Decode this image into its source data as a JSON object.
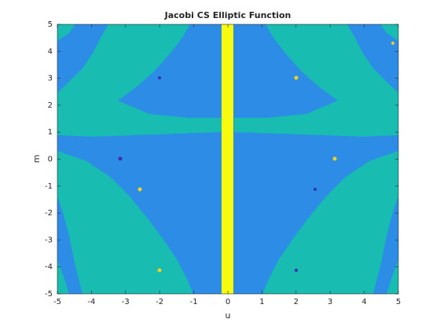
{
  "chart_data": {
    "type": "contour",
    "title": "Jacobi CS Elliptic Function",
    "xlabel": "u",
    "ylabel": "m",
    "xlim": [
      -5,
      5
    ],
    "ylim": [
      -5,
      5
    ],
    "xticks": [
      -5,
      -4,
      -3,
      -2,
      -1,
      0,
      1,
      2,
      3,
      4,
      5
    ],
    "yticks": [
      -5,
      -4,
      -3,
      -2,
      -1,
      0,
      1,
      2,
      3,
      4,
      5
    ]
  }
}
